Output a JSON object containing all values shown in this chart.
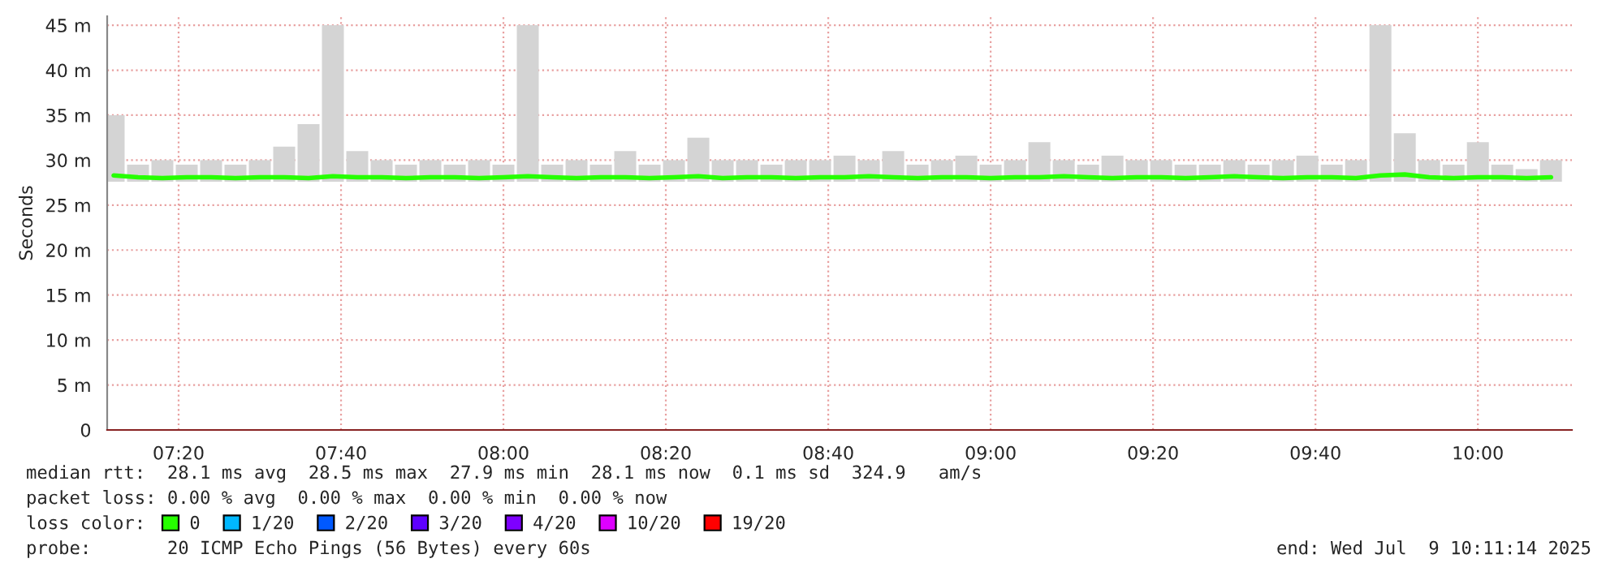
{
  "chart_data": {
    "type": "line",
    "ylabel": "Seconds",
    "legend_title": "loss color:",
    "legend": "bottom",
    "grid": true,
    "line_style": "solid",
    "marker": "none",
    "x": [
      7.2,
      7.25,
      7.3,
      7.35,
      7.4,
      7.45,
      7.5,
      7.55,
      7.6,
      7.65,
      7.7,
      7.75,
      7.8,
      7.85,
      7.9,
      7.95,
      8.0,
      8.05,
      8.1,
      8.15,
      8.2,
      8.25,
      8.3,
      8.35,
      8.4,
      8.45,
      8.5,
      8.55,
      8.6,
      8.65,
      8.7,
      8.75,
      8.8,
      8.85,
      8.9,
      8.95,
      9.0,
      9.05,
      9.1,
      9.15,
      9.2,
      9.25,
      9.3,
      9.35,
      9.4,
      9.45,
      9.5,
      9.55,
      9.6,
      9.65,
      9.7,
      9.75,
      9.8,
      9.85,
      9.9,
      9.95,
      10.0,
      10.05,
      10.1,
      10.15
    ],
    "xlim": [
      7.1867,
      10.193
    ],
    "ylim": [
      0,
      46
    ],
    "xticks": [
      {
        "value": 7.3333,
        "label": "07:20"
      },
      {
        "value": 7.6667,
        "label": "07:40"
      },
      {
        "value": 8,
        "label": "08:00"
      },
      {
        "value": 8.3333,
        "label": "08:20"
      },
      {
        "value": 8.6667,
        "label": "08:40"
      },
      {
        "value": 9,
        "label": "09:00"
      },
      {
        "value": 9.3333,
        "label": "09:20"
      },
      {
        "value": 9.6667,
        "label": "09:40"
      },
      {
        "value": 10,
        "label": "10:00"
      }
    ],
    "yticks": [
      0,
      {
        "value": 5,
        "label": "5 m"
      },
      {
        "value": 10,
        "label": "10 m"
      },
      {
        "value": 15,
        "label": "15 m"
      },
      {
        "value": 20,
        "label": "20 m"
      },
      {
        "value": 25,
        "label": "25 m"
      },
      {
        "value": 30,
        "label": "30 m"
      },
      {
        "value": 35,
        "label": "35 m"
      },
      {
        "value": 40,
        "label": "40 m"
      },
      {
        "value": 45,
        "label": "45 m"
      }
    ],
    "series": [
      {
        "type": "bar",
        "color": "#d4d4d4",
        "base": [
          27.6,
          27.6,
          27.6,
          27.6,
          27.6,
          27.6,
          27.6,
          27.6,
          27.6,
          27.6,
          27.6,
          27.6,
          27.6,
          27.6,
          27.6,
          27.6,
          27.6,
          27.6,
          27.6,
          27.6,
          27.6,
          27.6,
          27.6,
          27.6,
          27.6,
          27.6,
          27.6,
          27.6,
          27.6,
          27.6,
          27.6,
          27.6,
          27.6,
          27.6,
          27.6,
          27.6,
          27.6,
          27.6,
          27.6,
          27.6,
          27.6,
          27.6,
          27.6,
          27.6,
          27.6,
          27.6,
          27.6,
          27.6,
          27.6,
          27.6,
          27.6,
          27.6,
          27.6,
          27.6,
          27.6,
          27.6,
          27.6,
          27.6,
          27.6,
          27.6
        ],
        "values": [
          7.4,
          1.9,
          2.4,
          1.9,
          2.4,
          1.9,
          2.4,
          3.9,
          6.4,
          17.4,
          3.4,
          2.4,
          1.9,
          2.4,
          1.9,
          2.4,
          1.9,
          17.4,
          1.9,
          2.4,
          1.9,
          3.4,
          1.9,
          2.4,
          4.9,
          2.4,
          2.4,
          1.9,
          2.4,
          2.4,
          2.9,
          2.4,
          3.4,
          1.9,
          2.4,
          2.9,
          1.9,
          2.4,
          4.4,
          2.4,
          1.9,
          2.9,
          2.4,
          2.4,
          1.9,
          1.9,
          2.4,
          1.9,
          2.4,
          2.9,
          1.9,
          2.4,
          17.4,
          5.4,
          2.4,
          1.9,
          4.4,
          1.9,
          1.4,
          2.4
        ]
      },
      {
        "name": "0",
        "color": "#26ff00",
        "values": [
          28.3,
          28.1,
          28.0,
          28.1,
          28.1,
          28.0,
          28.1,
          28.1,
          28.0,
          28.2,
          28.1,
          28.1,
          28.0,
          28.1,
          28.1,
          28.0,
          28.1,
          28.2,
          28.1,
          28.0,
          28.1,
          28.1,
          28.0,
          28.1,
          28.2,
          28.0,
          28.1,
          28.1,
          28.0,
          28.1,
          28.1,
          28.2,
          28.1,
          28.0,
          28.1,
          28.1,
          28.0,
          28.1,
          28.1,
          28.2,
          28.1,
          28.0,
          28.1,
          28.1,
          28.0,
          28.1,
          28.2,
          28.1,
          28.0,
          28.1,
          28.1,
          28.0,
          28.3,
          28.4,
          28.1,
          28.0,
          28.1,
          28.1,
          28.0,
          28.1
        ]
      },
      {
        "name": "1/20",
        "color": "#00b8ff",
        "values": [
          null,
          null,
          null,
          null,
          null,
          null,
          null,
          null,
          null,
          null,
          null,
          null,
          null,
          null,
          null,
          null,
          null,
          null,
          null,
          null,
          null,
          null,
          null,
          null,
          null,
          null,
          null,
          null,
          null,
          null,
          null,
          null,
          null,
          null,
          null,
          null,
          null,
          null,
          null,
          null,
          null,
          null,
          null,
          null,
          null,
          null,
          null,
          null,
          null,
          null,
          null,
          null,
          null,
          null,
          null,
          null,
          null,
          null,
          null,
          null
        ]
      },
      {
        "name": "2/20",
        "color": "#0059ff",
        "values": [
          null,
          null,
          null,
          null,
          null,
          null,
          null,
          null,
          null,
          null,
          null,
          null,
          null,
          null,
          null,
          null,
          null,
          null,
          null,
          null,
          null,
          null,
          null,
          null,
          null,
          null,
          null,
          null,
          null,
          null,
          null,
          null,
          null,
          null,
          null,
          null,
          null,
          null,
          null,
          null,
          null,
          null,
          null,
          null,
          null,
          null,
          null,
          null,
          null,
          null,
          null,
          null,
          null,
          null,
          null,
          null,
          null,
          null,
          null,
          null
        ]
      },
      {
        "name": "3/20",
        "color": "#5e00ff",
        "values": [
          null,
          null,
          null,
          null,
          null,
          null,
          null,
          null,
          null,
          null,
          null,
          null,
          null,
          null,
          null,
          null,
          null,
          null,
          null,
          null,
          null,
          null,
          null,
          null,
          null,
          null,
          null,
          null,
          null,
          null,
          null,
          null,
          null,
          null,
          null,
          null,
          null,
          null,
          null,
          null,
          null,
          null,
          null,
          null,
          null,
          null,
          null,
          null,
          null,
          null,
          null,
          null,
          null,
          null,
          null,
          null,
          null,
          null,
          null,
          null
        ]
      },
      {
        "name": "4/20",
        "color": "#7e00ff",
        "values": [
          null,
          null,
          null,
          null,
          null,
          null,
          null,
          null,
          null,
          null,
          null,
          null,
          null,
          null,
          null,
          null,
          null,
          null,
          null,
          null,
          null,
          null,
          null,
          null,
          null,
          null,
          null,
          null,
          null,
          null,
          null,
          null,
          null,
          null,
          null,
          null,
          null,
          null,
          null,
          null,
          null,
          null,
          null,
          null,
          null,
          null,
          null,
          null,
          null,
          null,
          null,
          null,
          null,
          null,
          null,
          null,
          null,
          null,
          null,
          null
        ]
      },
      {
        "name": "10/20",
        "color": "#dd00ff",
        "values": [
          null,
          null,
          null,
          null,
          null,
          null,
          null,
          null,
          null,
          null,
          null,
          null,
          null,
          null,
          null,
          null,
          null,
          null,
          null,
          null,
          null,
          null,
          null,
          null,
          null,
          null,
          null,
          null,
          null,
          null,
          null,
          null,
          null,
          null,
          null,
          null,
          null,
          null,
          null,
          null,
          null,
          null,
          null,
          null,
          null,
          null,
          null,
          null,
          null,
          null,
          null,
          null,
          null,
          null,
          null,
          null,
          null,
          null,
          null,
          null
        ]
      },
      {
        "name": "19/20",
        "color": "#ff0000",
        "values": [
          null,
          null,
          null,
          null,
          null,
          null,
          null,
          null,
          null,
          null,
          null,
          null,
          null,
          null,
          null,
          null,
          null,
          null,
          null,
          null,
          null,
          null,
          null,
          null,
          null,
          null,
          null,
          null,
          null,
          null,
          null,
          null,
          null,
          null,
          null,
          null,
          null,
          null,
          null,
          null,
          null,
          null,
          null,
          null,
          null,
          null,
          null,
          null,
          null,
          null,
          null,
          null,
          null,
          null,
          null,
          null,
          null,
          null,
          null,
          null
        ]
      }
    ],
    "annotations": [
      "median rtt:  28.1 ms avg  28.5 ms max  27.9 ms min  28.1 ms now  0.1 ms sd  324.9   am/s",
      "packet loss: 0.00 % avg  0.00 % max  0.00 % min  0.00 % now",
      "probe:       20 ICMP Echo Pings (56 Bytes) every 60s",
      "end: Wed Jul  9 10:11:14 2025"
    ]
  }
}
